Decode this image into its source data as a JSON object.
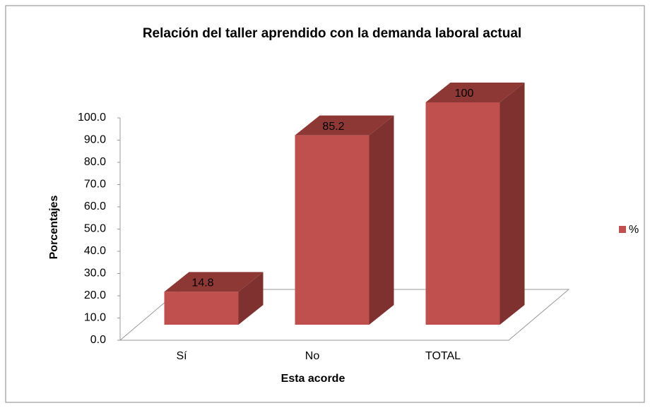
{
  "chart_data": {
    "type": "bar3d",
    "title": "Relación del taller aprendido con la demanda laboral actual",
    "x_label": "Esta acorde",
    "y_label": "Porcentajes",
    "categories": [
      "Sí",
      "No",
      "TOTAL"
    ],
    "series": [
      {
        "name": "%",
        "color": "#c0504d",
        "values": [
          14.8,
          85.2,
          100
        ]
      }
    ],
    "ylim": [
      0,
      100
    ],
    "yticks": [
      {
        "value": 0,
        "label": "0.0"
      },
      {
        "value": 10,
        "label": "10.0"
      },
      {
        "value": 20,
        "label": "20.0"
      },
      {
        "value": 30,
        "label": "30.0"
      },
      {
        "value": 40,
        "label": "40.0"
      },
      {
        "value": 50,
        "label": "50.0"
      },
      {
        "value": 60,
        "label": "60.0"
      },
      {
        "value": 70,
        "label": "70.0"
      },
      {
        "value": 80,
        "label": "80.0"
      },
      {
        "value": 90,
        "label": "90.0"
      },
      {
        "value": 100,
        "label": "100.0"
      }
    ],
    "legend": "right"
  }
}
